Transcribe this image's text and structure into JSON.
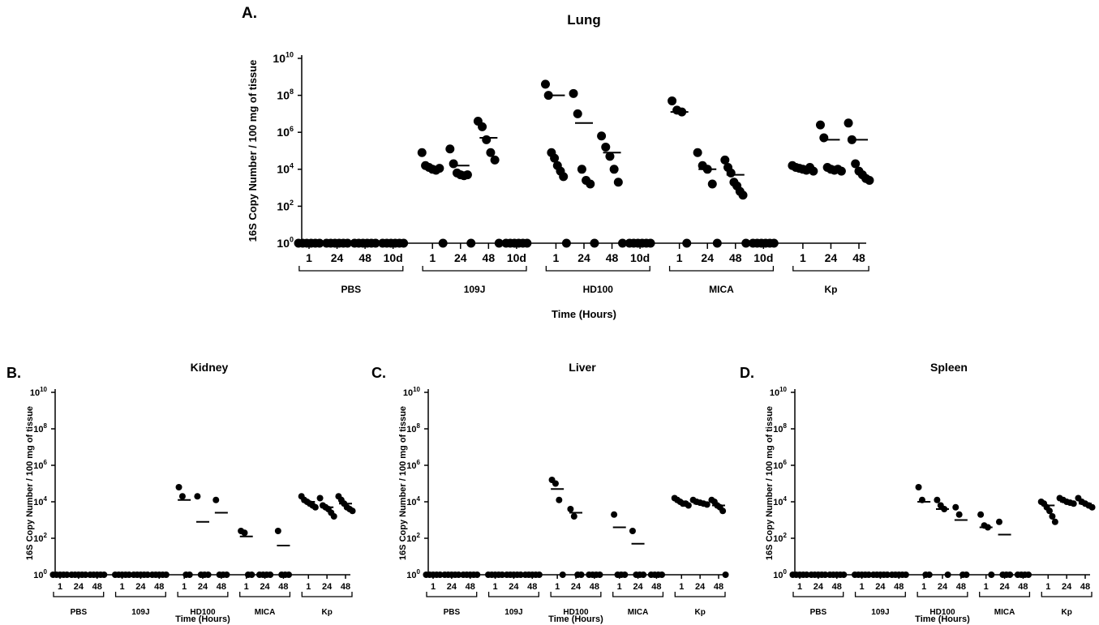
{
  "panels": [
    {
      "letter": "A.",
      "title": "Lung"
    },
    {
      "letter": "B.",
      "title": "Kidney"
    },
    {
      "letter": "C.",
      "title": "Liver"
    },
    {
      "letter": "D.",
      "title": "Spleen"
    }
  ],
  "chart_data": [
    {
      "type": "scatter",
      "panel": "A.",
      "title": "Lung",
      "ylabel": "16S Copy Number / 100 mg of tissue",
      "xlabel": "Time (Hours)",
      "y_scale": "log10",
      "ylim": [
        1,
        10000000000
      ],
      "y_ticks": [
        {
          "base": "10",
          "exp": "0"
        },
        {
          "base": "10",
          "exp": "2"
        },
        {
          "base": "10",
          "exp": "4"
        },
        {
          "base": "10",
          "exp": "6"
        },
        {
          "base": "10",
          "exp": "8"
        },
        {
          "base": "10",
          "exp": "10"
        }
      ],
      "groups": [
        {
          "name": "PBS",
          "times": [
            {
              "label": "1",
              "points": [
                0,
                0,
                0,
                0,
                0,
                0
              ],
              "median": 0
            },
            {
              "label": "24",
              "points": [
                0,
                0,
                0,
                0,
                0,
                0
              ],
              "median": 0
            },
            {
              "label": "48",
              "points": [
                0,
                0,
                0,
                0,
                0,
                0
              ],
              "median": 0
            },
            {
              "label": "10d",
              "points": [
                0,
                0,
                0,
                0,
                0,
                0
              ],
              "median": 0
            }
          ]
        },
        {
          "name": "109J",
          "times": [
            {
              "label": "1",
              "points": [
                4.9,
                4.2,
                4.1,
                4.0,
                3.95,
                4.05,
                0
              ],
              "median": 4.1
            },
            {
              "label": "24",
              "points": [
                5.1,
                4.3,
                3.8,
                3.7,
                3.65,
                3.7,
                0
              ],
              "median": 4.2
            },
            {
              "label": "48",
              "points": [
                6.6,
                6.3,
                5.6,
                4.9,
                4.5,
                0
              ],
              "median": 5.7
            },
            {
              "label": "10d",
              "points": [
                0,
                0,
                0,
                0,
                0,
                0
              ],
              "median": 0
            }
          ]
        },
        {
          "name": "HD100",
          "times": [
            {
              "label": "1",
              "points": [
                8.6,
                8.0,
                4.9,
                4.6,
                4.2,
                3.9,
                3.6,
                0
              ],
              "median": 8.0
            },
            {
              "label": "24",
              "points": [
                8.1,
                7.0,
                4.0,
                3.4,
                3.2,
                0
              ],
              "median": 6.5
            },
            {
              "label": "48",
              "points": [
                5.8,
                5.2,
                4.7,
                4.0,
                3.3,
                0
              ],
              "median": 4.9
            },
            {
              "label": "10d",
              "points": [
                0,
                0,
                0,
                0,
                0,
                0
              ],
              "median": 0
            }
          ]
        },
        {
          "name": "MICA",
          "times": [
            {
              "label": "1",
              "points": [
                7.7,
                7.2,
                7.1,
                0
              ],
              "median": 7.1
            },
            {
              "label": "24",
              "points": [
                4.9,
                4.2,
                4.0,
                3.2,
                0
              ],
              "median": 4.0
            },
            {
              "label": "48",
              "points": [
                4.5,
                4.1,
                3.8,
                3.3,
                3.1,
                2.8,
                2.6,
                0
              ],
              "median": 3.7
            },
            {
              "label": "10d",
              "points": [
                0,
                0,
                0,
                0,
                0,
                0
              ],
              "median": 0
            }
          ]
        },
        {
          "name": "Kp",
          "times": [
            {
              "label": "1",
              "points": [
                4.2,
                4.1,
                4.05,
                4.0,
                3.95,
                4.1,
                3.9
              ],
              "median": 4.0
            },
            {
              "label": "24",
              "points": [
                6.4,
                5.7,
                4.1,
                4.0,
                3.95,
                4.0,
                3.9
              ],
              "median": 5.6
            },
            {
              "label": "48",
              "points": [
                6.5,
                5.6,
                4.3,
                3.9,
                3.7,
                3.5,
                3.4
              ],
              "median": 5.6
            }
          ]
        }
      ]
    },
    {
      "type": "scatter",
      "panel": "B.",
      "title": "Kidney",
      "ylabel": "16S Copy Number / 100 mg of tissue",
      "xlabel": "Time (Hours)",
      "y_scale": "log10",
      "ylim": [
        1,
        10000000000
      ],
      "y_ticks": [
        {
          "base": "10",
          "exp": "0"
        },
        {
          "base": "10",
          "exp": "2"
        },
        {
          "base": "10",
          "exp": "4"
        },
        {
          "base": "10",
          "exp": "6"
        },
        {
          "base": "10",
          "exp": "8"
        },
        {
          "base": "10",
          "exp": "10"
        }
      ],
      "groups": [
        {
          "name": "PBS",
          "times": [
            {
              "label": "1",
              "points": [
                0,
                0,
                0,
                0,
                0
              ],
              "median": 0
            },
            {
              "label": "24",
              "points": [
                0,
                0,
                0,
                0,
                0
              ],
              "median": 0
            },
            {
              "label": "48",
              "points": [
                0,
                0,
                0,
                0,
                0
              ],
              "median": 0
            }
          ]
        },
        {
          "name": "109J",
          "times": [
            {
              "label": "1",
              "points": [
                0,
                0,
                0,
                0,
                0
              ],
              "median": 0
            },
            {
              "label": "24",
              "points": [
                0,
                0,
                0,
                0,
                0
              ],
              "median": 0
            },
            {
              "label": "48",
              "points": [
                0,
                0,
                0,
                0,
                0
              ],
              "median": 0
            }
          ]
        },
        {
          "name": "HD100",
          "times": [
            {
              "label": "1",
              "points": [
                4.8,
                4.3,
                0,
                0
              ],
              "median": 4.1
            },
            {
              "label": "24",
              "points": [
                4.3,
                0,
                0,
                0
              ],
              "median": 2.9
            },
            {
              "label": "48",
              "points": [
                4.1,
                0,
                0,
                0
              ],
              "median": 3.4
            }
          ]
        },
        {
          "name": "MICA",
          "times": [
            {
              "label": "1",
              "points": [
                2.4,
                2.3,
                0,
                0
              ],
              "median": 2.1
            },
            {
              "label": "24",
              "points": [
                0,
                0,
                0,
                0
              ],
              "median": 0
            },
            {
              "label": "48",
              "points": [
                2.4,
                0,
                0,
                0
              ],
              "median": 1.6
            }
          ]
        },
        {
          "name": "Kp",
          "times": [
            {
              "label": "1",
              "points": [
                4.3,
                4.1,
                4.0,
                3.9,
                3.8,
                3.7
              ],
              "median": 4.0
            },
            {
              "label": "24",
              "points": [
                4.2,
                3.8,
                3.7,
                3.6,
                3.4,
                3.2
              ],
              "median": 3.7
            },
            {
              "label": "48",
              "points": [
                4.3,
                4.1,
                3.9,
                3.7,
                3.6,
                3.5
              ],
              "median": 3.9
            }
          ]
        }
      ]
    },
    {
      "type": "scatter",
      "panel": "C.",
      "title": "Liver",
      "ylabel": "16S Copy Number / 100 mg of tissue",
      "xlabel": "Time (Hours)",
      "y_scale": "log10",
      "ylim": [
        1,
        10000000000
      ],
      "y_ticks": [
        {
          "base": "10",
          "exp": "0"
        },
        {
          "base": "10",
          "exp": "2"
        },
        {
          "base": "10",
          "exp": "4"
        },
        {
          "base": "10",
          "exp": "6"
        },
        {
          "base": "10",
          "exp": "8"
        },
        {
          "base": "10",
          "exp": "10"
        }
      ],
      "groups": [
        {
          "name": "PBS",
          "times": [
            {
              "label": "1",
              "points": [
                0,
                0,
                0,
                0,
                0
              ],
              "median": 0
            },
            {
              "label": "24",
              "points": [
                0,
                0,
                0,
                0,
                0
              ],
              "median": 0
            },
            {
              "label": "48",
              "points": [
                0,
                0,
                0,
                0,
                0
              ],
              "median": 0
            }
          ]
        },
        {
          "name": "109J",
          "times": [
            {
              "label": "1",
              "points": [
                0,
                0,
                0,
                0,
                0
              ],
              "median": 0
            },
            {
              "label": "24",
              "points": [
                0,
                0,
                0,
                0,
                0
              ],
              "median": 0
            },
            {
              "label": "48",
              "points": [
                0,
                0,
                0,
                0,
                0
              ],
              "median": 0
            }
          ]
        },
        {
          "name": "HD100",
          "times": [
            {
              "label": "1",
              "points": [
                5.2,
                5.0,
                4.1,
                0
              ],
              "median": 4.7
            },
            {
              "label": "24",
              "points": [
                3.6,
                3.2,
                0,
                0
              ],
              "median": 3.4
            },
            {
              "label": "48",
              "points": [
                0,
                0,
                0,
                0
              ],
              "median": 0
            }
          ]
        },
        {
          "name": "MICA",
          "times": [
            {
              "label": "1",
              "points": [
                3.3,
                0,
                0,
                0
              ],
              "median": 2.6
            },
            {
              "label": "24",
              "points": [
                2.4,
                0,
                0,
                0
              ],
              "median": 1.7
            },
            {
              "label": "48",
              "points": [
                0,
                0,
                0,
                0
              ],
              "median": 0
            }
          ]
        },
        {
          "name": "Kp",
          "times": [
            {
              "label": "1",
              "points": [
                4.2,
                4.1,
                4.0,
                3.9,
                3.9,
                3.8
              ],
              "median": 4.0
            },
            {
              "label": "24",
              "points": [
                4.1,
                4.0,
                3.95,
                3.9,
                3.85
              ],
              "median": 3.9
            },
            {
              "label": "48",
              "points": [
                4.1,
                4.0,
                3.8,
                3.7,
                3.5,
                0
              ],
              "median": 3.8
            }
          ]
        }
      ]
    },
    {
      "type": "scatter",
      "panel": "D.",
      "title": "Spleen",
      "ylabel": "16S Copy Number / 100 mg of tissue",
      "xlabel": "Time (Hours)",
      "y_scale": "log10",
      "ylim": [
        1,
        10000000000
      ],
      "y_ticks": [
        {
          "base": "10",
          "exp": "0"
        },
        {
          "base": "10",
          "exp": "2"
        },
        {
          "base": "10",
          "exp": "4"
        },
        {
          "base": "10",
          "exp": "6"
        },
        {
          "base": "10",
          "exp": "8"
        },
        {
          "base": "10",
          "exp": "10"
        }
      ],
      "groups": [
        {
          "name": "PBS",
          "times": [
            {
              "label": "1",
              "points": [
                0,
                0,
                0,
                0,
                0
              ],
              "median": 0
            },
            {
              "label": "24",
              "points": [
                0,
                0,
                0,
                0,
                0
              ],
              "median": 0
            },
            {
              "label": "48",
              "points": [
                0,
                0,
                0,
                0,
                0
              ],
              "median": 0
            }
          ]
        },
        {
          "name": "109J",
          "times": [
            {
              "label": "1",
              "points": [
                0,
                0,
                0,
                0,
                0
              ],
              "median": 0
            },
            {
              "label": "24",
              "points": [
                0,
                0,
                0,
                0,
                0
              ],
              "median": 0
            },
            {
              "label": "48",
              "points": [
                0,
                0,
                0,
                0,
                0
              ],
              "median": 0
            }
          ]
        },
        {
          "name": "HD100",
          "times": [
            {
              "label": "1",
              "points": [
                4.8,
                4.1,
                0,
                0
              ],
              "median": 4.0
            },
            {
              "label": "24",
              "points": [
                4.1,
                3.8,
                3.6,
                0
              ],
              "median": 3.6
            },
            {
              "label": "48",
              "points": [
                3.7,
                3.3,
                0,
                0
              ],
              "median": 3.0
            }
          ]
        },
        {
          "name": "MICA",
          "times": [
            {
              "label": "1",
              "points": [
                3.3,
                2.7,
                2.6,
                0
              ],
              "median": 2.6
            },
            {
              "label": "24",
              "points": [
                2.9,
                0,
                0,
                0
              ],
              "median": 2.2
            },
            {
              "label": "48",
              "points": [
                0,
                0,
                0,
                0
              ],
              "median": 0
            }
          ]
        },
        {
          "name": "Kp",
          "times": [
            {
              "label": "1",
              "points": [
                4.0,
                3.9,
                3.7,
                3.5,
                3.2,
                2.9
              ],
              "median": 3.8
            },
            {
              "label": "24",
              "points": [
                4.2,
                4.1,
                4.0,
                3.95,
                3.9
              ],
              "median": 4.0
            },
            {
              "label": "48",
              "points": [
                4.2,
                4.0,
                3.9,
                3.8,
                3.7
              ],
              "median": 3.9
            }
          ]
        }
      ]
    }
  ]
}
